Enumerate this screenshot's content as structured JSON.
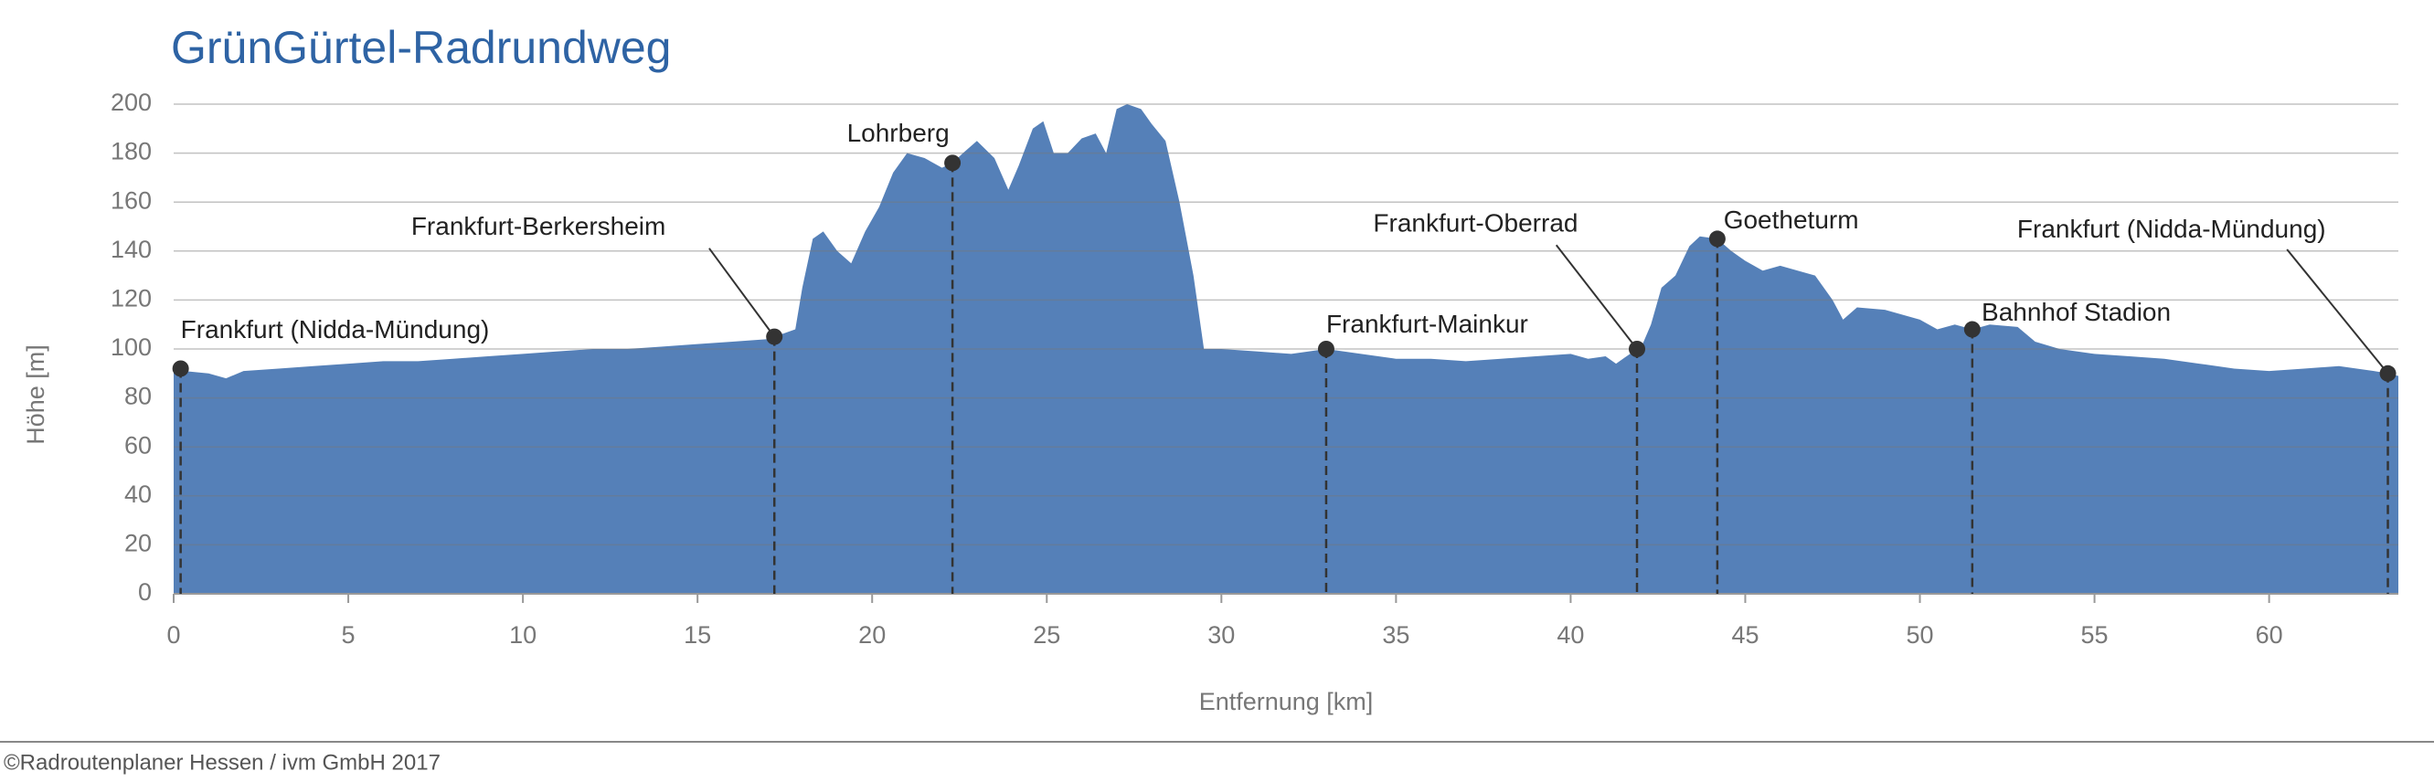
{
  "chart_data": {
    "type": "area",
    "title": "GrünGürtel-Radrundweg",
    "x_label": "Entfernung [km]",
    "y_label": "Höhe [m]",
    "footer": "©Radroutenplaner Hessen / ivm GmbH 2017",
    "color": "#5580b8",
    "grid": true,
    "xlim": [
      0,
      63.7
    ],
    "ylim": [
      0,
      200
    ],
    "xticks": [
      0,
      5,
      10,
      15,
      20,
      25,
      30,
      35,
      40,
      45,
      50,
      55,
      60
    ],
    "yticks": [
      0,
      20,
      40,
      60,
      80,
      100,
      120,
      140,
      160,
      180,
      200
    ],
    "x": [
      0,
      0.3,
      1,
      1.5,
      2,
      3,
      4,
      5,
      6,
      7,
      8,
      9,
      10,
      11,
      12,
      13,
      14,
      15,
      16,
      17,
      17.2,
      17.8,
      18,
      18.3,
      18.6,
      19,
      19.4,
      19.8,
      20.2,
      20.6,
      21,
      21.5,
      22,
      22.3,
      22.6,
      23,
      23.5,
      23.9,
      24.2,
      24.6,
      24.9,
      25.2,
      25.6,
      26,
      26.4,
      26.7,
      27,
      27.3,
      27.7,
      28,
      28.4,
      28.8,
      29.2,
      29.5,
      30,
      31,
      32,
      33,
      34,
      35,
      36,
      37,
      38,
      39,
      40,
      40.5,
      41,
      41.3,
      41.7,
      42,
      42.3,
      42.6,
      43,
      43.4,
      43.7,
      44.2,
      44.6,
      45,
      45.5,
      46,
      46.5,
      47,
      47.5,
      47.8,
      48.2,
      49,
      50,
      50.5,
      51,
      51.5,
      52,
      52.8,
      53.3,
      54,
      55,
      56,
      57,
      58,
      59,
      60,
      61,
      62,
      63,
      63.4,
      63.7
    ],
    "values": [
      92,
      91,
      90,
      88,
      91,
      92,
      93,
      94,
      95,
      95,
      96,
      97,
      98,
      99,
      100,
      100,
      101,
      102,
      103,
      104,
      105,
      108,
      125,
      145,
      148,
      140,
      135,
      148,
      158,
      172,
      180,
      178,
      174,
      176,
      180,
      185,
      178,
      165,
      175,
      190,
      193,
      180,
      180,
      186,
      188,
      180,
      198,
      200,
      198,
      192,
      185,
      160,
      130,
      100,
      100,
      99,
      98,
      100,
      98,
      96,
      96,
      95,
      96,
      97,
      98,
      96,
      97,
      94,
      98,
      100,
      110,
      125,
      130,
      142,
      146,
      145,
      140,
      136,
      132,
      134,
      132,
      130,
      120,
      112,
      117,
      116,
      112,
      108,
      110,
      108,
      110,
      109,
      103,
      100,
      98,
      97,
      96,
      94,
      92,
      91,
      92,
      93,
      91,
      90,
      89
    ],
    "stops": [
      {
        "name": "Frankfurt (Nidda-Mündung)",
        "x": 0.2,
        "value": 92
      },
      {
        "name": "Frankfurt-Berkersheim",
        "x": 17.2,
        "value": 105
      },
      {
        "name": "Lohrberg",
        "x": 22.3,
        "value": 176
      },
      {
        "name": "Frankfurt-Mainkur",
        "x": 33,
        "value": 100
      },
      {
        "name": "Frankfurt-Oberrad",
        "x": 41.9,
        "value": 100
      },
      {
        "name": "Goetheturm",
        "x": 44.2,
        "value": 145
      },
      {
        "name": "Bahnhof Stadion",
        "x": 51.5,
        "value": 108
      },
      {
        "name": "Frankfurt (Nidda-Mündung)",
        "x": 63.4,
        "value": 90
      }
    ]
  }
}
